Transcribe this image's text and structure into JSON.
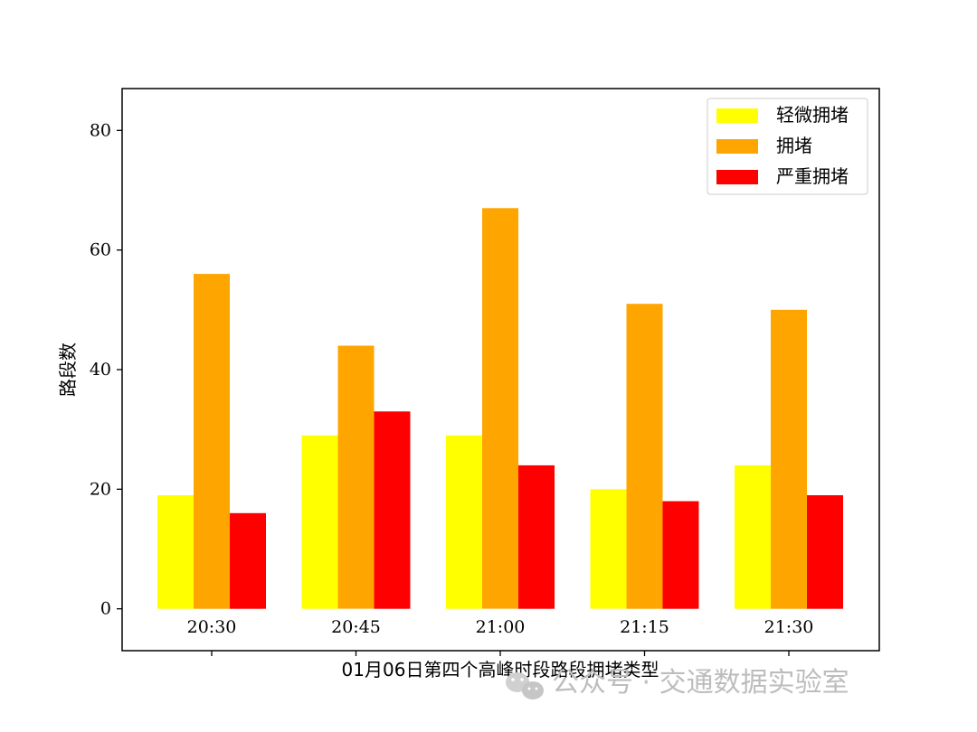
{
  "chart_data": {
    "type": "bar",
    "categories": [
      "20:30",
      "20:45",
      "21:00",
      "21:15",
      "21:30"
    ],
    "series": [
      {
        "name": "轻微拥堵",
        "color": "#ffff00",
        "values": [
          19,
          29,
          29,
          20,
          24
        ]
      },
      {
        "name": "拥堵",
        "color": "#ffa500",
        "values": [
          56,
          44,
          67,
          51,
          50
        ]
      },
      {
        "name": "严重拥堵",
        "color": "#ff0000",
        "values": [
          16,
          33,
          24,
          18,
          19
        ]
      }
    ],
    "xlabel": "01月06日第四个高峰时段路段拥堵类型",
    "ylabel": "路段数",
    "ylim": [
      -7,
      87
    ],
    "yticks": [
      0,
      20,
      40,
      60,
      80
    ],
    "legend_position": "upper-right",
    "grid": false
  },
  "watermark": {
    "text": "公众号 · 交通数据实验室",
    "icon": "wechat-icon"
  }
}
